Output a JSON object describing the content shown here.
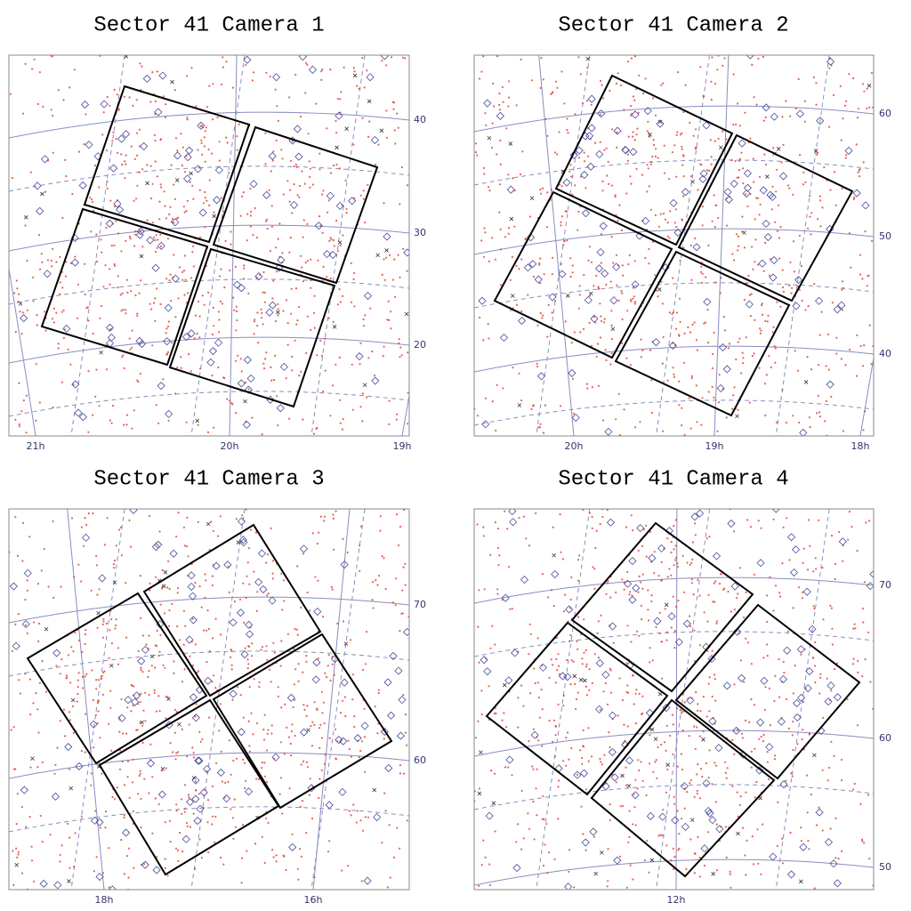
{
  "panels": [
    {
      "title": "Sector 41 Camera 1",
      "ra_labels": [
        "21h",
        "20h",
        "19h"
      ],
      "dec_labels": [
        "40",
        "30",
        "20"
      ]
    },
    {
      "title": "Sector 41 Camera 2",
      "ra_labels": [
        "20h",
        "19h",
        "18h"
      ],
      "dec_labels": [
        "60",
        "50",
        "40"
      ]
    },
    {
      "title": "Sector 41 Camera 3",
      "ra_labels": [
        "18h",
        "16h"
      ],
      "dec_labels": [
        "70",
        "60"
      ]
    },
    {
      "title": "Sector 41 Camera 4",
      "ra_labels": [
        "12h"
      ],
      "dec_labels": [
        "70",
        "60",
        "50"
      ]
    }
  ]
}
